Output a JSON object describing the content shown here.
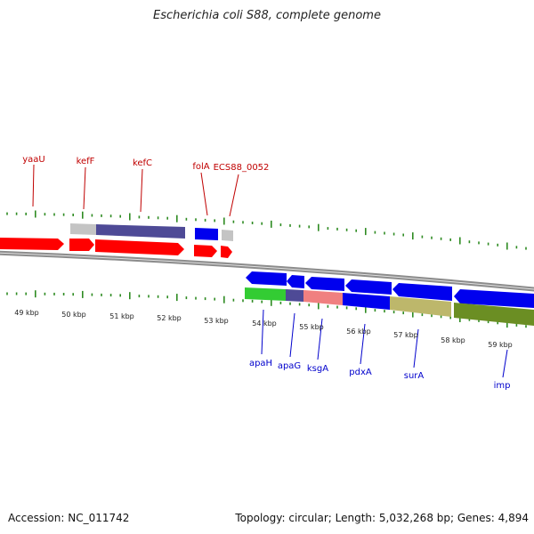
{
  "title": "Escherichia coli S88, complete genome",
  "footer": {
    "accession": "Accession: NC_011742",
    "summary": "Topology: circular; Length: 5,032,268 bp; Genes: 4,894"
  },
  "colors": {
    "forward_gene": "#ff0000",
    "reverse_gene": "#0000ff",
    "forward_label": "#c00000",
    "reverse_label": "#0000cc",
    "tick": "#2e8b22",
    "backbone": "#888888"
  },
  "kbp_labels": [
    "49 kbp",
    "50 kbp",
    "51 kbp",
    "52 kbp",
    "53 kbp",
    "54 kbp",
    "55 kbp",
    "56 kbp",
    "57 kbp",
    "58 kbp",
    "59 kbp"
  ],
  "forward_gene_labels": [
    "yaaU",
    "kefF",
    "kefC",
    "folA",
    "ECS88_0052"
  ],
  "reverse_gene_labels": [
    "apaH",
    "apaG",
    "ksgA",
    "pdxA",
    "surA",
    "imp"
  ]
}
